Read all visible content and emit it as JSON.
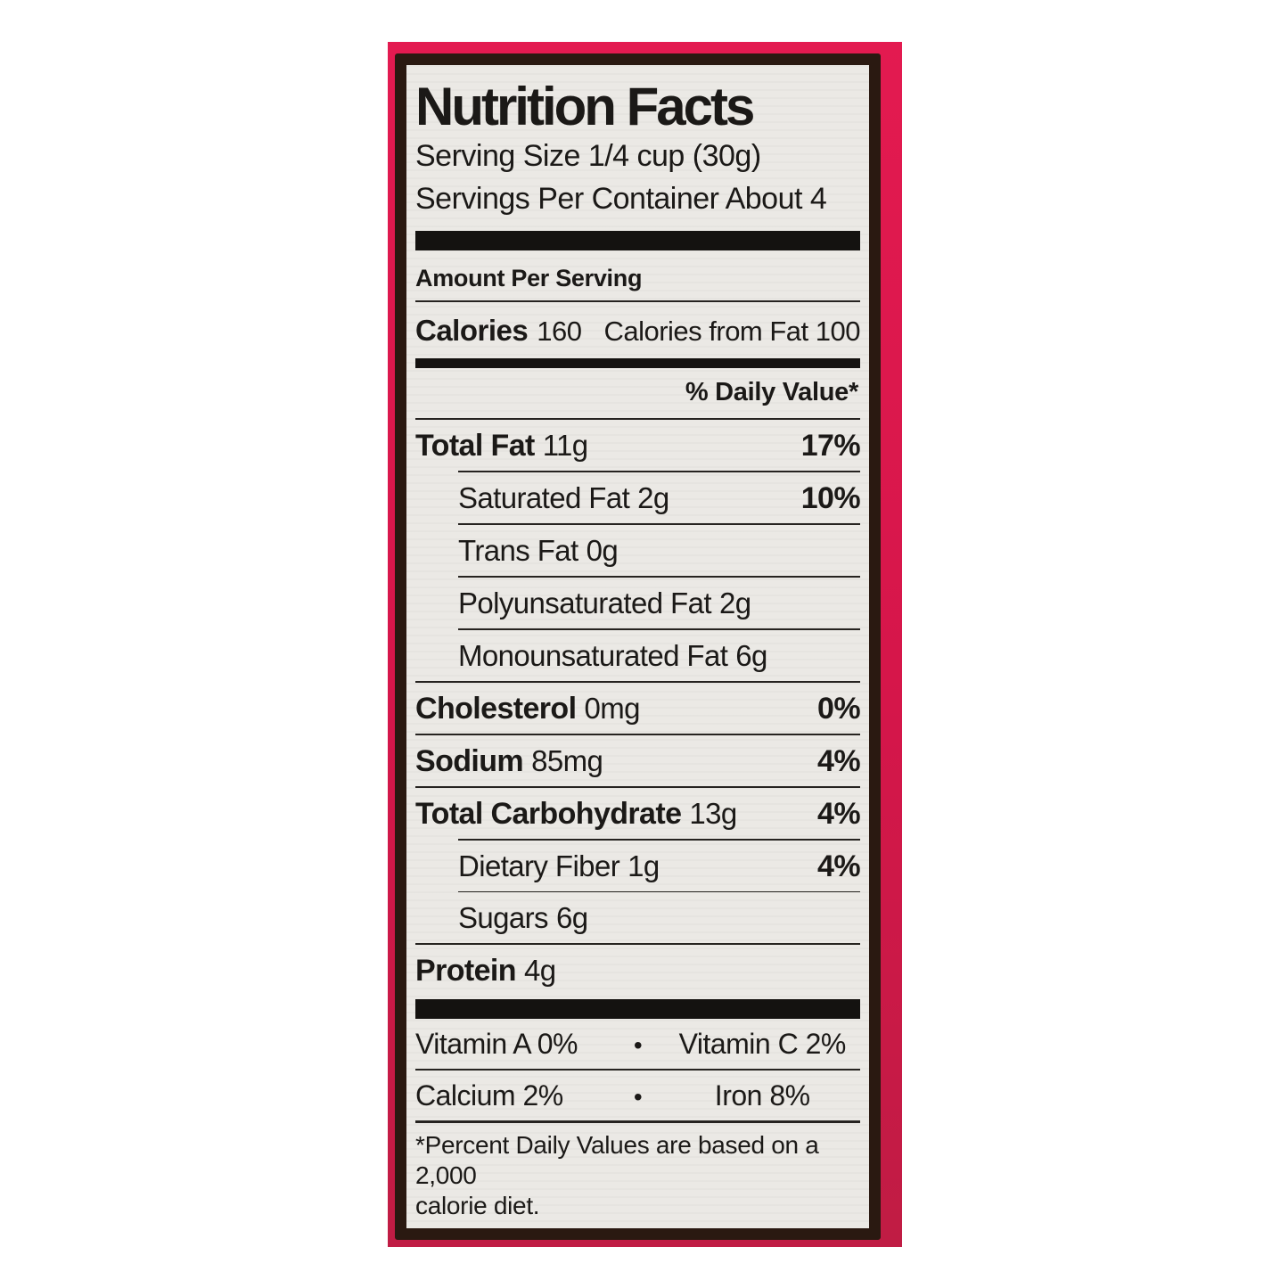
{
  "colors": {
    "packaging_pink": "#d5164a",
    "label_border_brown": "#2a1911",
    "label_background": "#ebe9e5",
    "bar_black": "#141210",
    "text_ink": "#1b1917"
  },
  "label": {
    "title": "Nutrition Facts",
    "serving_size": "Serving Size 1/4 cup (30g)",
    "servings_per_container": "Servings Per Container About 4",
    "amount_per_serving": "Amount Per Serving",
    "calories": {
      "label": "Calories",
      "value": "160",
      "from_fat": "Calories from Fat 100"
    },
    "daily_value_header": "% Daily Value*",
    "rows": [
      {
        "name": "Total Fat",
        "value": "11g",
        "pct": "17%"
      },
      {
        "name": "Saturated Fat",
        "value": "2g",
        "pct": "10%"
      },
      {
        "name": "Trans Fat",
        "value": "0g",
        "pct": ""
      },
      {
        "name": "Polyunsaturated Fat",
        "value": "2g",
        "pct": ""
      },
      {
        "name": "Monounsaturated Fat",
        "value": "6g",
        "pct": ""
      },
      {
        "name": "Cholesterol",
        "value": "0mg",
        "pct": "0%"
      },
      {
        "name": "Sodium",
        "value": "85mg",
        "pct": "4%"
      },
      {
        "name": "Total Carbohydrate",
        "value": "13g",
        "pct": "4%"
      },
      {
        "name": "Dietary Fiber",
        "value": "1g",
        "pct": "4%"
      },
      {
        "name": "Sugars",
        "value": "6g",
        "pct": ""
      },
      {
        "name": "Protein",
        "value": "4g",
        "pct": ""
      }
    ],
    "micronutrients": {
      "bullet": "•",
      "row1_left": "Vitamin A 0%",
      "row1_right": "Vitamin C 2%",
      "row2_left": "Calcium 2%",
      "row2_right": "Iron 8%"
    },
    "footnote_line1": "*Percent Daily Values are based on a 2,000",
    "footnote_line2": "calorie diet."
  }
}
